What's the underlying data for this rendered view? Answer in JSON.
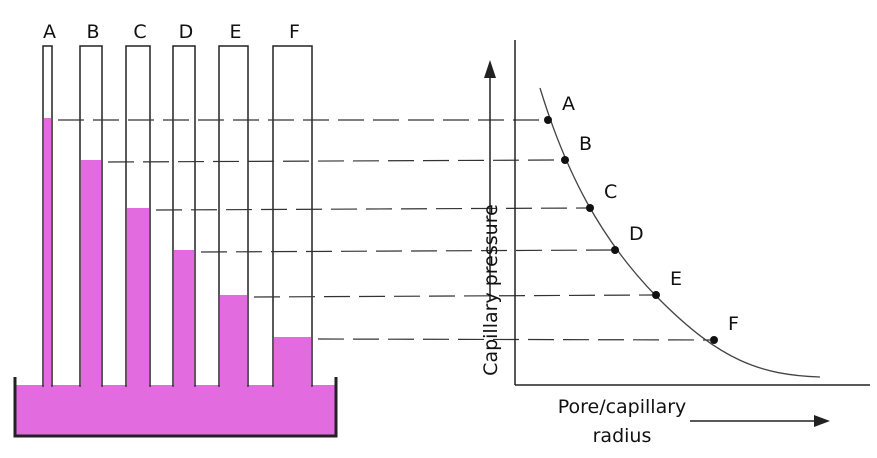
{
  "tubes": {
    "labels": [
      "A",
      "B",
      "C",
      "D",
      "E",
      "F"
    ]
  },
  "graph": {
    "point_labels": [
      "A",
      "B",
      "C",
      "D",
      "E",
      "F"
    ],
    "y_axis_label": "Capillary pressure",
    "x_axis_label": [
      "Pore/capillary",
      "radius"
    ]
  }
}
